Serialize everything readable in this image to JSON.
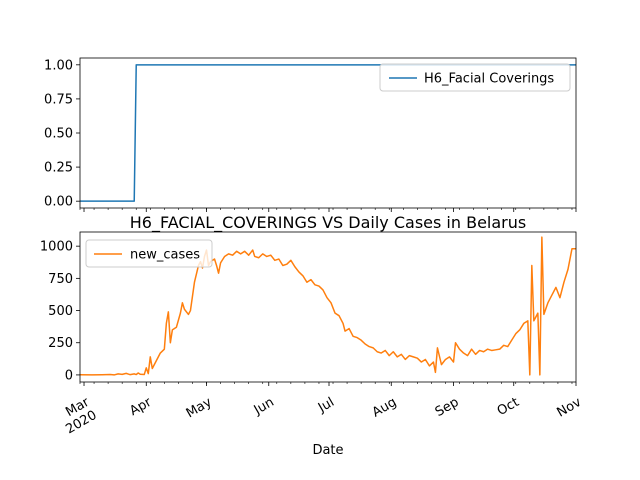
{
  "chart_data": [
    {
      "type": "line",
      "title": "",
      "xlabel": "",
      "ylabel": "",
      "ylim": [
        -0.05,
        1.05
      ],
      "yticks": [
        "0.00",
        "0.25",
        "0.50",
        "0.75",
        "1.00"
      ],
      "legend": "top-right",
      "series": [
        {
          "name": "H6_Facial Coverings",
          "color": "#1f77b4",
          "points": [
            [
              "2020-02-28",
              0
            ],
            [
              "2020-03-26",
              0
            ],
            [
              "2020-03-27",
              1
            ],
            [
              "2020-11-01",
              1
            ]
          ]
        }
      ]
    },
    {
      "type": "line",
      "title": "H6_FACIAL_COVERINGS VS Daily Cases in Belarus",
      "xlabel": "Date",
      "ylabel": "",
      "ylim": [
        -55,
        1110
      ],
      "yticks": [
        "0",
        "250",
        "500",
        "750",
        "1000"
      ],
      "legend": "top-left",
      "x_range": [
        "2020-02-28",
        "2020-11-01"
      ],
      "xticks": [
        "Mar\n2020",
        "Apr",
        "May",
        "Jun",
        "Jul",
        "Aug",
        "Sep",
        "Oct",
        "Nov"
      ],
      "series": [
        {
          "name": "new_cases",
          "color": "#ff7f0e",
          "points": [
            [
              "2020-02-28",
              1
            ],
            [
              "2020-03-05",
              0
            ],
            [
              "2020-03-10",
              1
            ],
            [
              "2020-03-14",
              3
            ],
            [
              "2020-03-16",
              0
            ],
            [
              "2020-03-18",
              8
            ],
            [
              "2020-03-20",
              4
            ],
            [
              "2020-03-22",
              12
            ],
            [
              "2020-03-24",
              2
            ],
            [
              "2020-03-26",
              8
            ],
            [
              "2020-03-27",
              3
            ],
            [
              "2020-03-28",
              15
            ],
            [
              "2020-03-29",
              5
            ],
            [
              "2020-03-31",
              3
            ],
            [
              "2020-04-01",
              55
            ],
            [
              "2020-04-02",
              10
            ],
            [
              "2020-04-03",
              140
            ],
            [
              "2020-04-04",
              50
            ],
            [
              "2020-04-06",
              110
            ],
            [
              "2020-04-08",
              170
            ],
            [
              "2020-04-10",
              200
            ],
            [
              "2020-04-11",
              400
            ],
            [
              "2020-04-12",
              490
            ],
            [
              "2020-04-13",
              250
            ],
            [
              "2020-04-14",
              350
            ],
            [
              "2020-04-16",
              370
            ],
            [
              "2020-04-18",
              480
            ],
            [
              "2020-04-19",
              560
            ],
            [
              "2020-04-20",
              510
            ],
            [
              "2020-04-22",
              470
            ],
            [
              "2020-04-23",
              500
            ],
            [
              "2020-04-25",
              720
            ],
            [
              "2020-04-27",
              850
            ],
            [
              "2020-04-28",
              880
            ],
            [
              "2020-04-29",
              830
            ],
            [
              "2020-04-30",
              920
            ],
            [
              "2020-05-01",
              970
            ],
            [
              "2020-05-02",
              850
            ],
            [
              "2020-05-03",
              880
            ],
            [
              "2020-05-05",
              900
            ],
            [
              "2020-05-06",
              850
            ],
            [
              "2020-05-07",
              790
            ],
            [
              "2020-05-08",
              870
            ],
            [
              "2020-05-10",
              920
            ],
            [
              "2020-05-12",
              940
            ],
            [
              "2020-05-14",
              930
            ],
            [
              "2020-05-16",
              960
            ],
            [
              "2020-05-18",
              940
            ],
            [
              "2020-05-20",
              960
            ],
            [
              "2020-05-22",
              930
            ],
            [
              "2020-05-24",
              970
            ],
            [
              "2020-05-25",
              920
            ],
            [
              "2020-05-27",
              910
            ],
            [
              "2020-05-29",
              940
            ],
            [
              "2020-05-31",
              920
            ],
            [
              "2020-06-02",
              930
            ],
            [
              "2020-06-04",
              890
            ],
            [
              "2020-06-06",
              900
            ],
            [
              "2020-06-08",
              850
            ],
            [
              "2020-06-10",
              860
            ],
            [
              "2020-06-12",
              890
            ],
            [
              "2020-06-14",
              840
            ],
            [
              "2020-06-16",
              800
            ],
            [
              "2020-06-18",
              770
            ],
            [
              "2020-06-20",
              720
            ],
            [
              "2020-06-22",
              740
            ],
            [
              "2020-06-24",
              700
            ],
            [
              "2020-06-26",
              690
            ],
            [
              "2020-06-28",
              660
            ],
            [
              "2020-06-30",
              600
            ],
            [
              "2020-07-02",
              560
            ],
            [
              "2020-07-04",
              480
            ],
            [
              "2020-07-06",
              460
            ],
            [
              "2020-07-08",
              400
            ],
            [
              "2020-07-09",
              340
            ],
            [
              "2020-07-11",
              360
            ],
            [
              "2020-07-13",
              300
            ],
            [
              "2020-07-15",
              290
            ],
            [
              "2020-07-17",
              270
            ],
            [
              "2020-07-19",
              240
            ],
            [
              "2020-07-21",
              220
            ],
            [
              "2020-07-23",
              210
            ],
            [
              "2020-07-25",
              180
            ],
            [
              "2020-07-27",
              170
            ],
            [
              "2020-07-29",
              190
            ],
            [
              "2020-07-31",
              150
            ],
            [
              "2020-08-02",
              180
            ],
            [
              "2020-08-04",
              140
            ],
            [
              "2020-08-06",
              160
            ],
            [
              "2020-08-08",
              120
            ],
            [
              "2020-08-10",
              150
            ],
            [
              "2020-08-12",
              140
            ],
            [
              "2020-08-14",
              130
            ],
            [
              "2020-08-16",
              100
            ],
            [
              "2020-08-18",
              120
            ],
            [
              "2020-08-20",
              70
            ],
            [
              "2020-08-22",
              100
            ],
            [
              "2020-08-23",
              20
            ],
            [
              "2020-08-24",
              210
            ],
            [
              "2020-08-26",
              80
            ],
            [
              "2020-08-28",
              120
            ],
            [
              "2020-08-30",
              140
            ],
            [
              "2020-09-01",
              100
            ],
            [
              "2020-09-02",
              250
            ],
            [
              "2020-09-04",
              200
            ],
            [
              "2020-09-06",
              170
            ],
            [
              "2020-09-08",
              150
            ],
            [
              "2020-09-10",
              200
            ],
            [
              "2020-09-12",
              160
            ],
            [
              "2020-09-14",
              190
            ],
            [
              "2020-09-16",
              180
            ],
            [
              "2020-09-18",
              200
            ],
            [
              "2020-09-20",
              190
            ],
            [
              "2020-09-22",
              195
            ],
            [
              "2020-09-24",
              200
            ],
            [
              "2020-09-26",
              230
            ],
            [
              "2020-09-28",
              220
            ],
            [
              "2020-09-30",
              270
            ],
            [
              "2020-10-02",
              320
            ],
            [
              "2020-10-04",
              350
            ],
            [
              "2020-10-06",
              400
            ],
            [
              "2020-10-08",
              420
            ],
            [
              "2020-10-09",
              0
            ],
            [
              "2020-10-10",
              850
            ],
            [
              "2020-10-11",
              420
            ],
            [
              "2020-10-12",
              450
            ],
            [
              "2020-10-13",
              480
            ],
            [
              "2020-10-14",
              0
            ],
            [
              "2020-10-15",
              1070
            ],
            [
              "2020-10-16",
              470
            ],
            [
              "2020-10-18",
              560
            ],
            [
              "2020-10-20",
              620
            ],
            [
              "2020-10-22",
              680
            ],
            [
              "2020-10-24",
              600
            ],
            [
              "2020-10-26",
              720
            ],
            [
              "2020-10-28",
              820
            ],
            [
              "2020-10-30",
              980
            ],
            [
              "2020-11-01",
              980
            ]
          ]
        }
      ]
    }
  ]
}
